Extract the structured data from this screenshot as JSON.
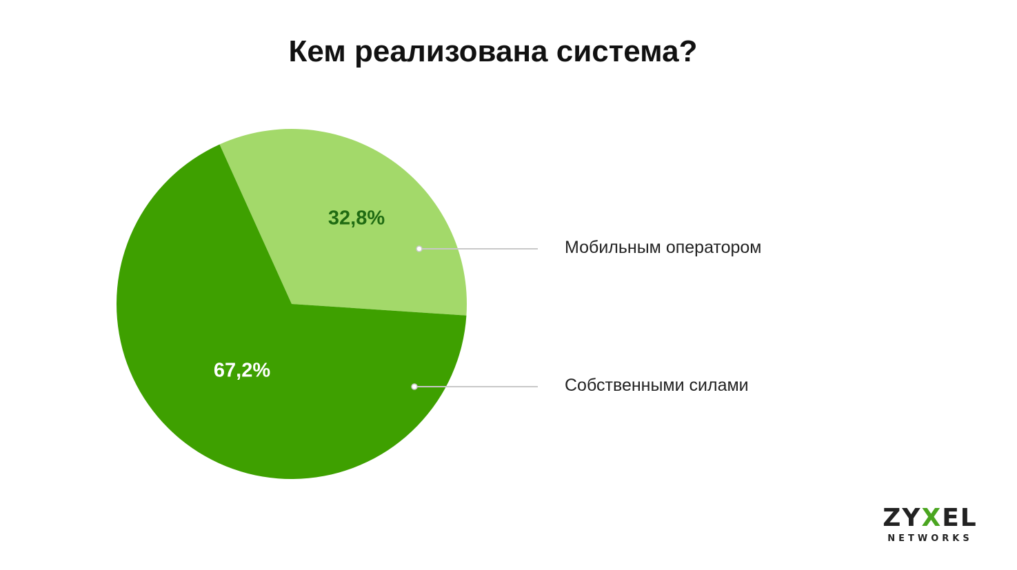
{
  "chart_data": {
    "type": "pie",
    "title": "Кем реализована система?",
    "slices": [
      {
        "label": "Мобильным оператором",
        "value": 32.8,
        "display": "32,8%",
        "color": "#a3d96a",
        "label_color": "#1f6b12"
      },
      {
        "label": "Собственными силами",
        "value": 67.2,
        "display": "67,2%",
        "color": "#3ea000",
        "label_color": "#ffffff"
      }
    ],
    "legend_placement": "right"
  },
  "logo": {
    "word_start": "ZY",
    "word_x": "X",
    "word_end": "EL",
    "sub": "NETWORKS",
    "accent_color": "#4aa520"
  }
}
